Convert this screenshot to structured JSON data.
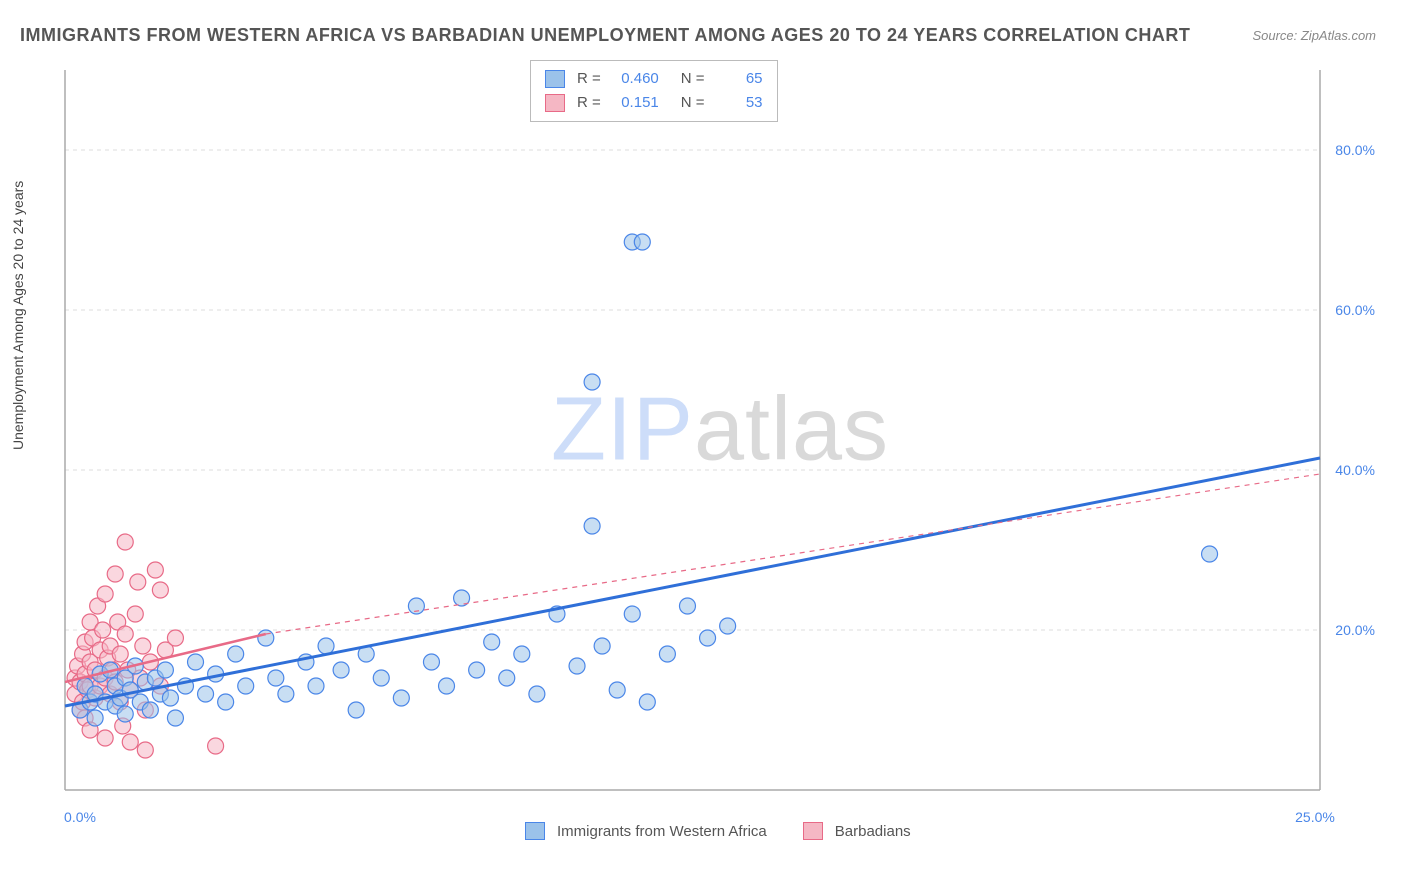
{
  "title": "IMMIGRANTS FROM WESTERN AFRICA VS BARBADIAN UNEMPLOYMENT AMONG AGES 20 TO 24 YEARS CORRELATION CHART",
  "source": "Source: ZipAtlas.com",
  "y_axis_label": "Unemployment Among Ages 20 to 24 years",
  "watermark": {
    "part1": "ZIP",
    "part2": "atlas"
  },
  "chart": {
    "type": "scatter",
    "xlim": [
      0,
      25
    ],
    "ylim": [
      0,
      90
    ],
    "x_ticks": [
      {
        "v": 0,
        "label": "0.0%"
      },
      {
        "v": 25,
        "label": "25.0%"
      }
    ],
    "y_ticks": [
      {
        "v": 20,
        "label": "20.0%"
      },
      {
        "v": 40,
        "label": "40.0%"
      },
      {
        "v": 60,
        "label": "60.0%"
      },
      {
        "v": 80,
        "label": "80.0%"
      }
    ],
    "background_color": "#ffffff",
    "grid_color": "#dcdcdc",
    "axis_color": "#aaaaaa",
    "marker_radius": 8,
    "marker_stroke_width": 1.2,
    "series": [
      {
        "name": "Immigrants from Western Africa",
        "fill": "#9bc2ea",
        "stroke": "#4a86e8",
        "fill_opacity": 0.55,
        "r_value": "0.460",
        "n_value": "65",
        "trend": {
          "x1": 0,
          "y1": 10.5,
          "x2": 25,
          "y2": 41.5,
          "stroke": "#2f6fd8",
          "width": 3,
          "dash": "none"
        },
        "trend_ext": null,
        "points": [
          [
            0.3,
            10
          ],
          [
            0.4,
            13
          ],
          [
            0.5,
            11
          ],
          [
            0.6,
            12
          ],
          [
            0.6,
            9
          ],
          [
            0.7,
            14.5
          ],
          [
            0.8,
            11
          ],
          [
            0.9,
            15
          ],
          [
            1.0,
            10.5
          ],
          [
            1.0,
            13
          ],
          [
            1.1,
            11.5
          ],
          [
            1.2,
            14
          ],
          [
            1.2,
            9.5
          ],
          [
            1.3,
            12.5
          ],
          [
            1.4,
            15.5
          ],
          [
            1.5,
            11
          ],
          [
            1.6,
            13.5
          ],
          [
            1.7,
            10
          ],
          [
            1.8,
            14
          ],
          [
            1.9,
            12
          ],
          [
            2.0,
            15
          ],
          [
            2.1,
            11.5
          ],
          [
            2.2,
            9
          ],
          [
            2.4,
            13
          ],
          [
            2.6,
            16
          ],
          [
            2.8,
            12
          ],
          [
            3.0,
            14.5
          ],
          [
            3.2,
            11
          ],
          [
            3.4,
            17
          ],
          [
            3.6,
            13
          ],
          [
            4.0,
            19
          ],
          [
            4.2,
            14
          ],
          [
            4.4,
            12
          ],
          [
            4.8,
            16
          ],
          [
            5.0,
            13
          ],
          [
            5.2,
            18
          ],
          [
            5.5,
            15
          ],
          [
            5.8,
            10
          ],
          [
            6.0,
            17
          ],
          [
            6.3,
            14
          ],
          [
            6.7,
            11.5
          ],
          [
            7.0,
            23
          ],
          [
            7.3,
            16
          ],
          [
            7.6,
            13
          ],
          [
            7.9,
            24
          ],
          [
            8.2,
            15
          ],
          [
            8.5,
            18.5
          ],
          [
            8.8,
            14
          ],
          [
            9.1,
            17
          ],
          [
            9.4,
            12
          ],
          [
            9.8,
            22
          ],
          [
            10.2,
            15.5
          ],
          [
            10.5,
            33
          ],
          [
            10.7,
            18
          ],
          [
            11.0,
            12.5
          ],
          [
            11.3,
            22
          ],
          [
            11.6,
            11
          ],
          [
            12.0,
            17
          ],
          [
            12.4,
            23
          ],
          [
            12.8,
            19
          ],
          [
            13.2,
            20.5
          ],
          [
            11.3,
            68.5
          ],
          [
            11.5,
            68.5
          ],
          [
            10.5,
            51
          ],
          [
            22.8,
            29.5
          ]
        ]
      },
      {
        "name": "Barbadians",
        "fill": "#f5b7c4",
        "stroke": "#e86a87",
        "fill_opacity": 0.55,
        "r_value": "0.151",
        "n_value": "53",
        "trend": {
          "x1": 0,
          "y1": 13.5,
          "x2": 4.0,
          "y2": 19.5,
          "stroke": "#e86a87",
          "width": 2.5,
          "dash": "none"
        },
        "trend_ext": {
          "x1": 4.0,
          "y1": 19.5,
          "x2": 25,
          "y2": 39.5,
          "stroke": "#e86a87",
          "width": 1.2,
          "dash": "5,5"
        },
        "points": [
          [
            0.2,
            12
          ],
          [
            0.2,
            14
          ],
          [
            0.25,
            15.5
          ],
          [
            0.3,
            10
          ],
          [
            0.3,
            13.5
          ],
          [
            0.35,
            17
          ],
          [
            0.35,
            11
          ],
          [
            0.4,
            18.5
          ],
          [
            0.4,
            14.5
          ],
          [
            0.4,
            9
          ],
          [
            0.45,
            12.5
          ],
          [
            0.5,
            21
          ],
          [
            0.5,
            16
          ],
          [
            0.5,
            13
          ],
          [
            0.55,
            19
          ],
          [
            0.6,
            15
          ],
          [
            0.6,
            11.5
          ],
          [
            0.65,
            23
          ],
          [
            0.7,
            17.5
          ],
          [
            0.7,
            13
          ],
          [
            0.75,
            20
          ],
          [
            0.8,
            14
          ],
          [
            0.8,
            24.5
          ],
          [
            0.85,
            16.5
          ],
          [
            0.9,
            12
          ],
          [
            0.9,
            18
          ],
          [
            0.95,
            15
          ],
          [
            1.0,
            27
          ],
          [
            1.0,
            13.5
          ],
          [
            1.05,
            21
          ],
          [
            1.1,
            11
          ],
          [
            1.1,
            17
          ],
          [
            1.15,
            8
          ],
          [
            1.2,
            19.5
          ],
          [
            1.25,
            15
          ],
          [
            1.3,
            12.5
          ],
          [
            1.4,
            22
          ],
          [
            1.45,
            26
          ],
          [
            1.5,
            14
          ],
          [
            1.55,
            18
          ],
          [
            1.6,
            10
          ],
          [
            1.7,
            16
          ],
          [
            1.8,
            27.5
          ],
          [
            1.9,
            13
          ],
          [
            1.9,
            25
          ],
          [
            2.0,
            17.5
          ],
          [
            0.5,
            7.5
          ],
          [
            0.8,
            6.5
          ],
          [
            1.3,
            6
          ],
          [
            1.6,
            5
          ],
          [
            2.2,
            19
          ],
          [
            3.0,
            5.5
          ],
          [
            1.2,
            31
          ]
        ]
      }
    ],
    "legend_top": {
      "r_label": "R =",
      "n_label": "N ="
    },
    "legend_bottom": [
      {
        "label": "Immigrants from Western Africa",
        "fill": "#9bc2ea",
        "stroke": "#4a86e8"
      },
      {
        "label": "Barbadians",
        "fill": "#f5b7c4",
        "stroke": "#e86a87"
      }
    ]
  }
}
